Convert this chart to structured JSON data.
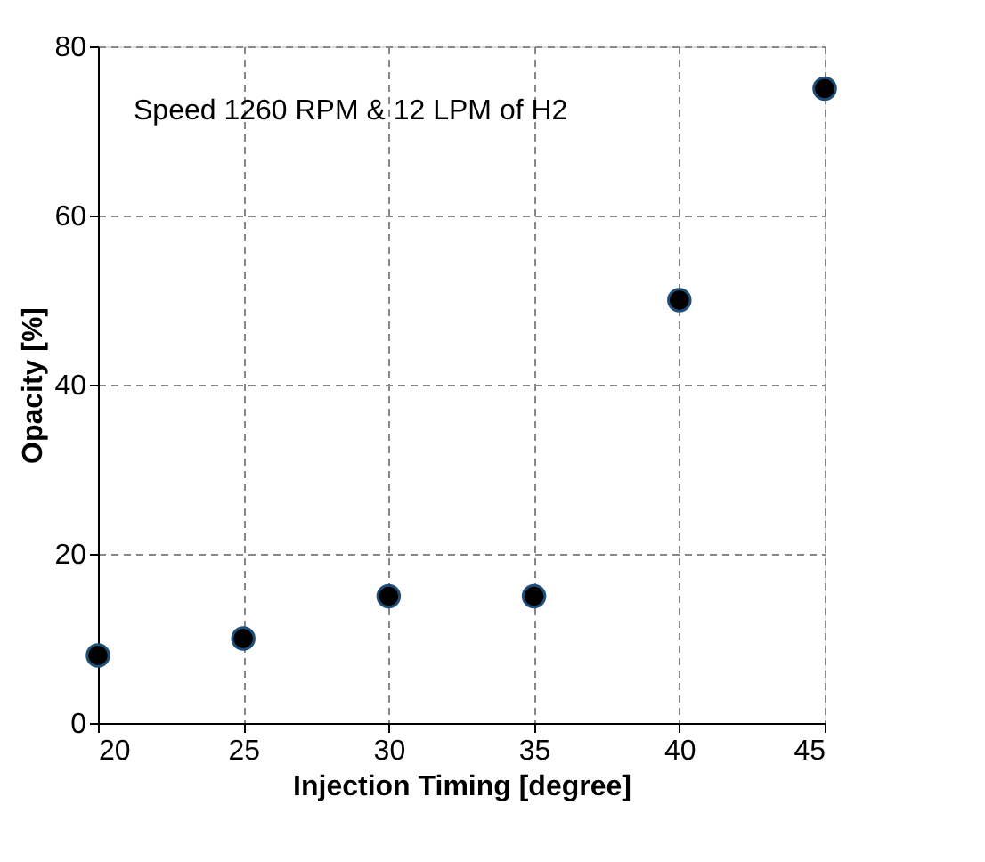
{
  "chart_data": {
    "type": "scatter",
    "xlabel": "Injection Timing [degree]",
    "ylabel": "Opacity [%]",
    "x": [
      20,
      25,
      30,
      35,
      40,
      45
    ],
    "series": [
      {
        "color": "#000000",
        "values": [
          8,
          10,
          15,
          15,
          50,
          75
        ]
      }
    ],
    "xlim": [
      20,
      45
    ],
    "xticks": [
      20,
      25,
      30,
      35,
      40,
      45
    ],
    "ylim": [
      0,
      80
    ],
    "yticks": [
      0,
      20,
      40,
      60,
      80
    ],
    "grid": true,
    "marker": "circle",
    "annotations": [
      "Speed 1260 RPM & 12 LPM of H2"
    ]
  }
}
